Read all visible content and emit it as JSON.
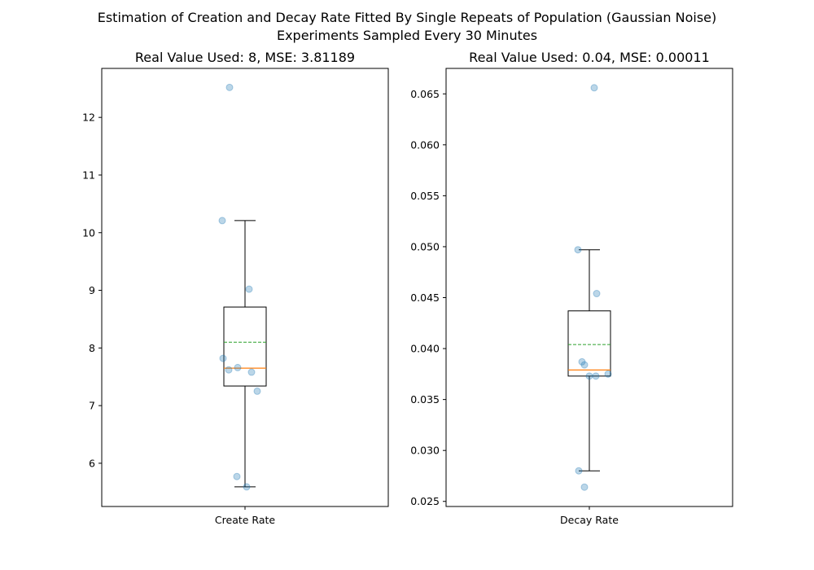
{
  "figure": {
    "suptitle_line1": "Estimation of Creation and Decay Rate Fitted By Single Repeats of Population (Gaussian Noise)",
    "suptitle_line2": "Experiments Sampled Every 30 Minutes"
  },
  "chart_data": [
    {
      "type": "box",
      "title": "Real Value Used: 8, MSE: 3.81189",
      "categories": [
        "Create Rate"
      ],
      "xlabel": "",
      "ylabel": "",
      "ylim": [
        5.25,
        12.85
      ],
      "yticks": [
        6,
        7,
        8,
        9,
        10,
        11,
        12
      ],
      "ytick_labels": [
        "6",
        "7",
        "8",
        "9",
        "10",
        "11",
        "12"
      ],
      "box": {
        "whisker_low": 5.59,
        "q1": 7.34,
        "median": 7.65,
        "mean": 8.1,
        "q3": 8.71,
        "whisker_high": 10.21
      },
      "points": [
        12.52,
        10.21,
        9.02,
        7.82,
        7.66,
        7.62,
        7.58,
        7.25,
        5.77,
        5.59
      ],
      "colors": {
        "box": "#000000",
        "median": "#ff7f0e",
        "mean": "#2ca02c",
        "points": "#1f77b4"
      }
    },
    {
      "type": "box",
      "title": "Real Value Used: 0.04, MSE: 0.00011",
      "categories": [
        "Decay Rate"
      ],
      "xlabel": "",
      "ylabel": "",
      "ylim": [
        0.0245,
        0.0675
      ],
      "yticks": [
        0.025,
        0.03,
        0.035,
        0.04,
        0.045,
        0.05,
        0.055,
        0.06,
        0.065
      ],
      "ytick_labels": [
        "0.025",
        "0.030",
        "0.035",
        "0.040",
        "0.045",
        "0.050",
        "0.055",
        "0.060",
        "0.065"
      ],
      "box": {
        "whisker_low": 0.028,
        "q1": 0.0373,
        "median": 0.0379,
        "mean": 0.0404,
        "q3": 0.0437,
        "whisker_high": 0.0497
      },
      "points": [
        0.0656,
        0.0497,
        0.0454,
        0.0387,
        0.0384,
        0.0375,
        0.0373,
        0.0373,
        0.028,
        0.0264
      ],
      "colors": {
        "box": "#000000",
        "median": "#ff7f0e",
        "mean": "#2ca02c",
        "points": "#1f77b4"
      }
    }
  ]
}
